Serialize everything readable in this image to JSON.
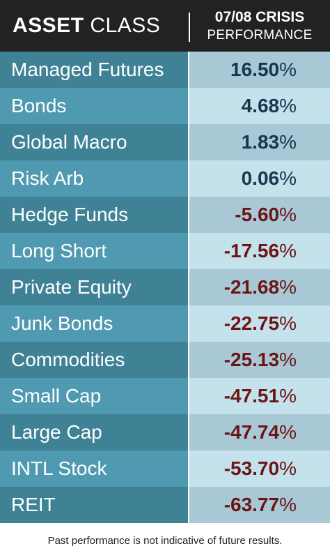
{
  "header": {
    "left_strong": "ASSET",
    "left_light": "CLASS",
    "right_top": "07/08 CRISIS",
    "right_bottom": "PERFORMANCE"
  },
  "chart_data": {
    "type": "table",
    "columns": [
      "ASSET CLASS",
      "07/08 CRISIS PERFORMANCE"
    ],
    "rows": [
      {
        "name": "Managed Futures",
        "value": "16.50",
        "sign": "pos"
      },
      {
        "name": "Bonds",
        "value": "4.68",
        "sign": "pos"
      },
      {
        "name": "Global Macro",
        "value": "1.83",
        "sign": "pos"
      },
      {
        "name": "Risk Arb",
        "value": "0.06",
        "sign": "pos"
      },
      {
        "name": "Hedge Funds",
        "value": "-5.60",
        "sign": "neg"
      },
      {
        "name": "Long Short",
        "value": "-17.56",
        "sign": "neg"
      },
      {
        "name": "Private Equity",
        "value": "-21.68",
        "sign": "neg"
      },
      {
        "name": "Junk Bonds",
        "value": "-22.75",
        "sign": "neg"
      },
      {
        "name": "Commodities",
        "value": "-25.13",
        "sign": "neg"
      },
      {
        "name": "Small Cap",
        "value": "-47.51",
        "sign": "neg"
      },
      {
        "name": "Large Cap",
        "value": "-47.74",
        "sign": "neg"
      },
      {
        "name": "INTL Stock",
        "value": "-53.70",
        "sign": "neg"
      },
      {
        "name": "REIT",
        "value": "-63.77",
        "sign": "neg"
      }
    ],
    "percent_symbol": "%",
    "colors": {
      "header_bg": "#222222",
      "positive_text": "#17374f",
      "negative_text": "#6d1515",
      "name_bg_dark": "#3f8296",
      "name_bg_light": "#4f9ab1",
      "value_bg_dark": "#a7c8d4",
      "value_bg_light": "#c4e2ec"
    }
  },
  "footnote": "Past performance is not indicative of future results."
}
